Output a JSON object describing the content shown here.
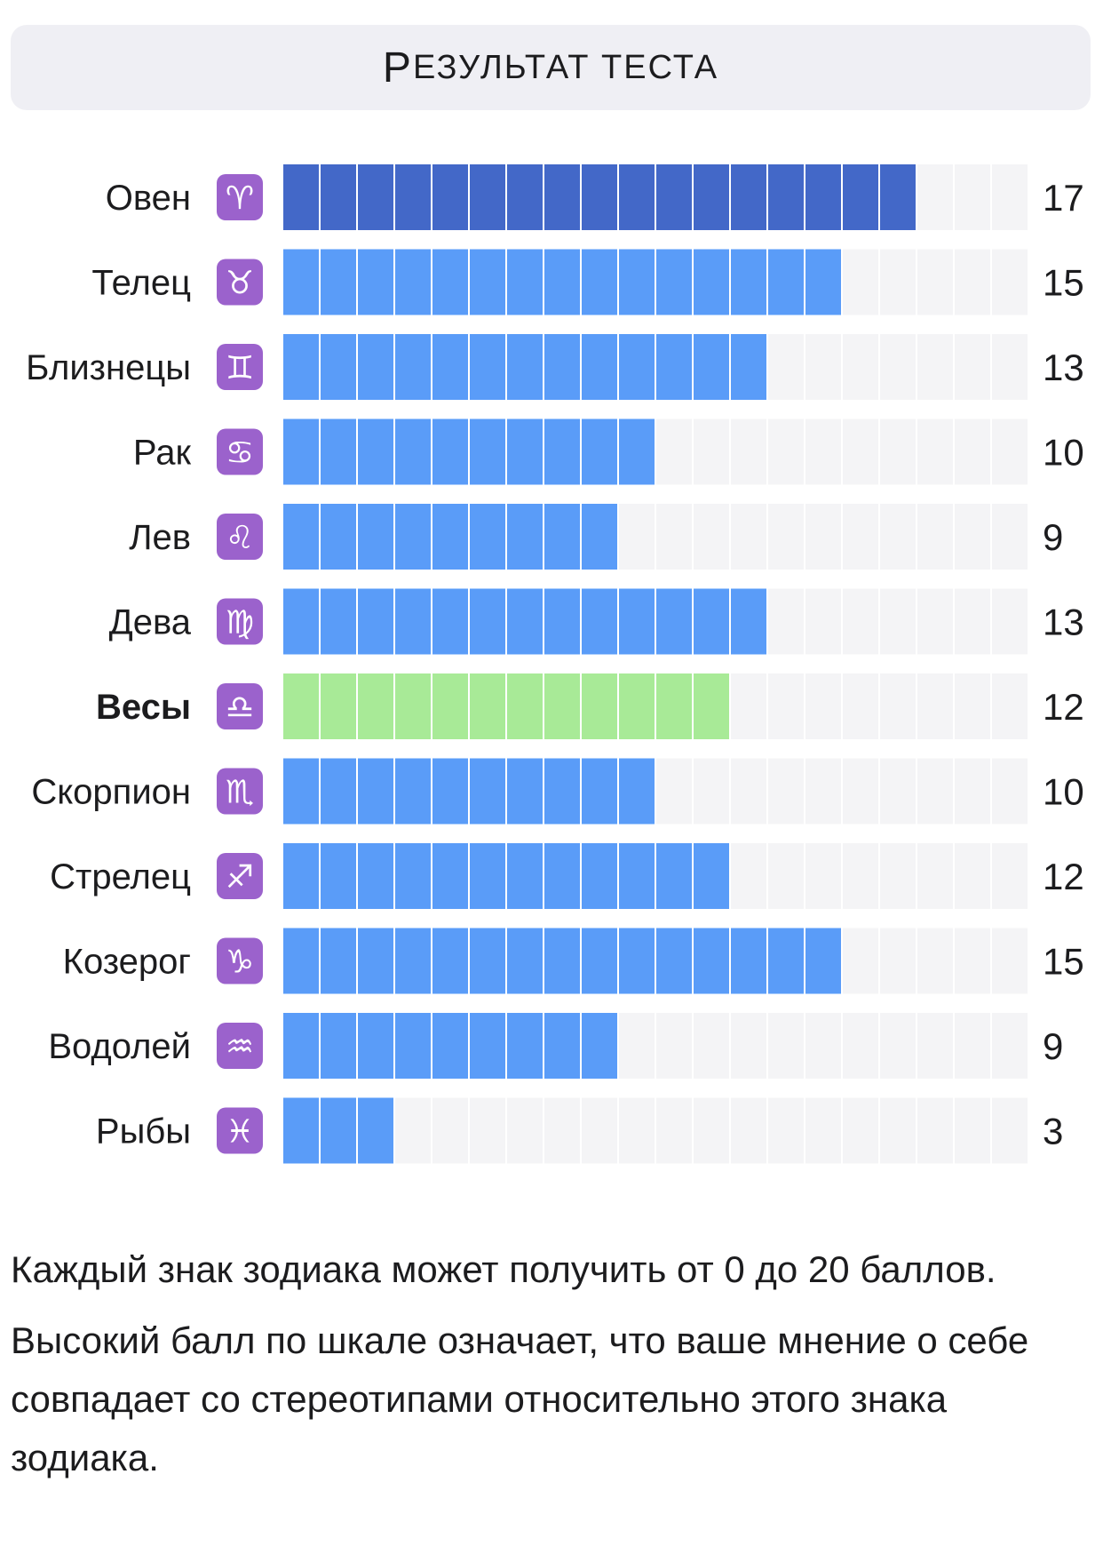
{
  "header": {
    "title_initial": "Р",
    "title_rest": "езультат теста"
  },
  "colors": {
    "default_bar": "#5a9cf8",
    "max_bar": "#4368c8",
    "highlight_bar": "#a8ea97",
    "empty_cell": "#f4f4f6",
    "icon_bg": "#9b62cc"
  },
  "chart_data": {
    "type": "bar",
    "orientation": "horizontal",
    "xlim": [
      0,
      20
    ],
    "categories": [
      "Овен",
      "Телец",
      "Близнецы",
      "Рак",
      "Лев",
      "Дева",
      "Весы",
      "Скорпион",
      "Стрелец",
      "Козерог",
      "Водолей",
      "Рыбы"
    ],
    "symbols": [
      "♈",
      "♉",
      "♊",
      "♋",
      "♌",
      "♍",
      "♎",
      "♏",
      "♐",
      "♑",
      "♒",
      "♓"
    ],
    "values": [
      17,
      15,
      13,
      10,
      9,
      13,
      12,
      10,
      12,
      15,
      9,
      3
    ],
    "highlight": "Весы",
    "max_highlight": "Овен"
  },
  "notes": {
    "line1": "Каждый знак зодиака может получить от 0 до 20 баллов.",
    "line2": "Высокий балл по шкале означает, что ваше мнение о себе совпадает со стереотипами относительно этого знака зодиака."
  }
}
